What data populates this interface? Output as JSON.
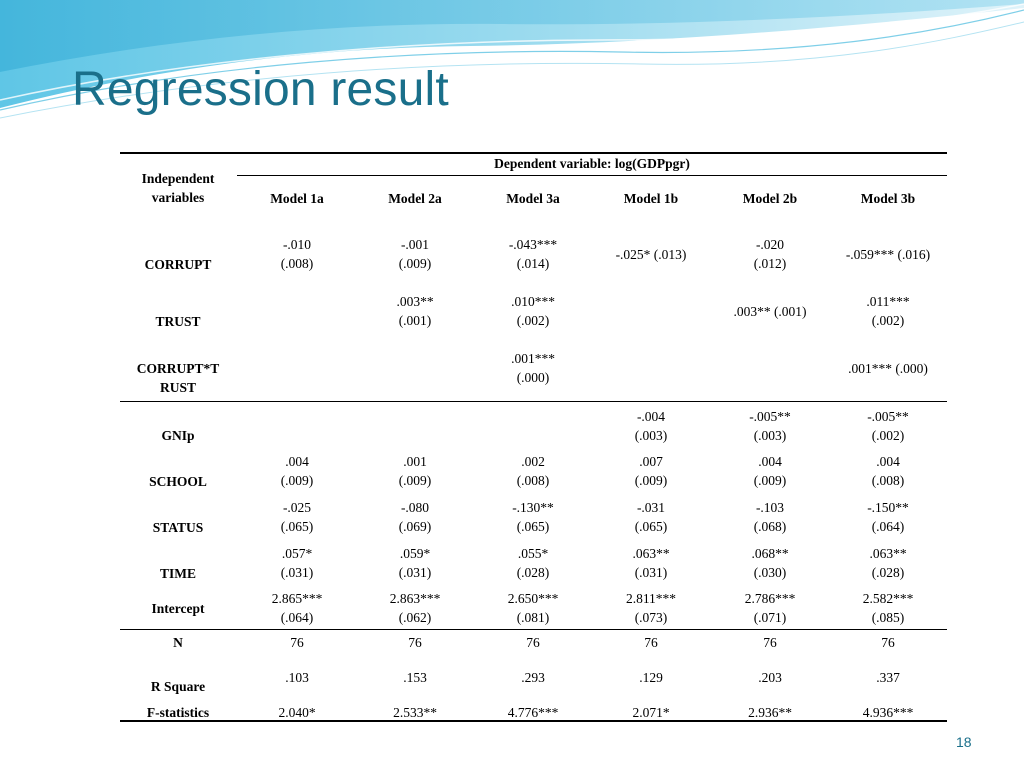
{
  "title": "Regression result",
  "page_number": "18",
  "table": {
    "header": {
      "row_label_1": "Independent",
      "row_label_2": "variables",
      "dependent": "Dependent variable: log(GDPpgr)",
      "models": [
        "Model 1a",
        "Model 2a",
        "Model 3a",
        "Model 1b",
        "Model 2b",
        "Model 3b"
      ]
    },
    "rows": [
      {
        "label": "CORRUPT",
        "cells": [
          {
            "l1": "-.010",
            "l2": "(.008)"
          },
          {
            "l1": "-.001",
            "l2": "(.009)"
          },
          {
            "l1": "-.043***",
            "l2": "(.014)"
          },
          {
            "l1": "-.025* (.013)",
            "l2": ""
          },
          {
            "l1": "-.020",
            "l2": "(.012)"
          },
          {
            "l1": "-.059*** (.016)",
            "l2": ""
          }
        ]
      },
      {
        "label": "TRUST",
        "cells": [
          {
            "l1": "",
            "l2": ""
          },
          {
            "l1": ".003**",
            "l2": "(.001)"
          },
          {
            "l1": ".010***",
            "l2": "(.002)"
          },
          {
            "l1": "",
            "l2": ""
          },
          {
            "l1": ".003** (.001)",
            "l2": ""
          },
          {
            "l1": ".011***",
            "l2": "(.002)"
          }
        ]
      },
      {
        "label_1": "CORRUPT*T",
        "label_2": "RUST",
        "cells": [
          {
            "l1": "",
            "l2": ""
          },
          {
            "l1": "",
            "l2": ""
          },
          {
            "l1": ".001***",
            "l2": "(.000)"
          },
          {
            "l1": "",
            "l2": ""
          },
          {
            "l1": "",
            "l2": ""
          },
          {
            "l1": ".001*** (.000)",
            "l2": ""
          }
        ]
      },
      {
        "label": "GNIp",
        "cells": [
          {
            "l1": "",
            "l2": ""
          },
          {
            "l1": "",
            "l2": ""
          },
          {
            "l1": "",
            "l2": ""
          },
          {
            "l1": "-.004",
            "l2": "(.003)"
          },
          {
            "l1": "-.005**",
            "l2": "(.003)"
          },
          {
            "l1": "-.005**",
            "l2": "(.002)"
          }
        ]
      },
      {
        "label": "SCHOOL",
        "cells": [
          {
            "l1": ".004",
            "l2": "(.009)"
          },
          {
            "l1": ".001",
            "l2": "(.009)"
          },
          {
            "l1": ".002",
            "l2": "(.008)"
          },
          {
            "l1": ".007",
            "l2": "(.009)"
          },
          {
            "l1": ".004",
            "l2": "(.009)"
          },
          {
            "l1": ".004",
            "l2": "(.008)"
          }
        ]
      },
      {
        "label": "STATUS",
        "cells": [
          {
            "l1": "-.025",
            "l2": "(.065)"
          },
          {
            "l1": "-.080",
            "l2": "(.069)"
          },
          {
            "l1": "-.130**",
            "l2": "(.065)"
          },
          {
            "l1": "-.031",
            "l2": "(.065)"
          },
          {
            "l1": "-.103",
            "l2": "(.068)"
          },
          {
            "l1": "-.150**",
            "l2": "(.064)"
          }
        ]
      },
      {
        "label": "TIME",
        "cells": [
          {
            "l1": ".057*",
            "l2": "(.031)"
          },
          {
            "l1": ".059*",
            "l2": "(.031)"
          },
          {
            "l1": ".055*",
            "l2": "(.028)"
          },
          {
            "l1": ".063**",
            "l2": "(.031)"
          },
          {
            "l1": ".068**",
            "l2": "(.030)"
          },
          {
            "l1": ".063**",
            "l2": "(.028)"
          }
        ]
      },
      {
        "label": "Intercept",
        "cells": [
          {
            "l1": "2.865***",
            "l2": "(.064)"
          },
          {
            "l1": "2.863***",
            "l2": "(.062)"
          },
          {
            "l1": "2.650***",
            "l2": "(.081)"
          },
          {
            "l1": "2.811***",
            "l2": "(.073)"
          },
          {
            "l1": "2.786***",
            "l2": "(.071)"
          },
          {
            "l1": "2.582***",
            "l2": "(.085)"
          }
        ]
      }
    ],
    "stats": [
      {
        "label": "N",
        "values": [
          "76",
          "76",
          "76",
          "76",
          "76",
          "76"
        ]
      },
      {
        "label": "R Square",
        "values": [
          ".103",
          ".153",
          ".293",
          ".129",
          ".203",
          ".337"
        ]
      },
      {
        "label": "F-statistics",
        "values": [
          "2.040*",
          "2.533**",
          "4.776***",
          "2.071*",
          "2.936**",
          "4.936***"
        ]
      }
    ]
  }
}
